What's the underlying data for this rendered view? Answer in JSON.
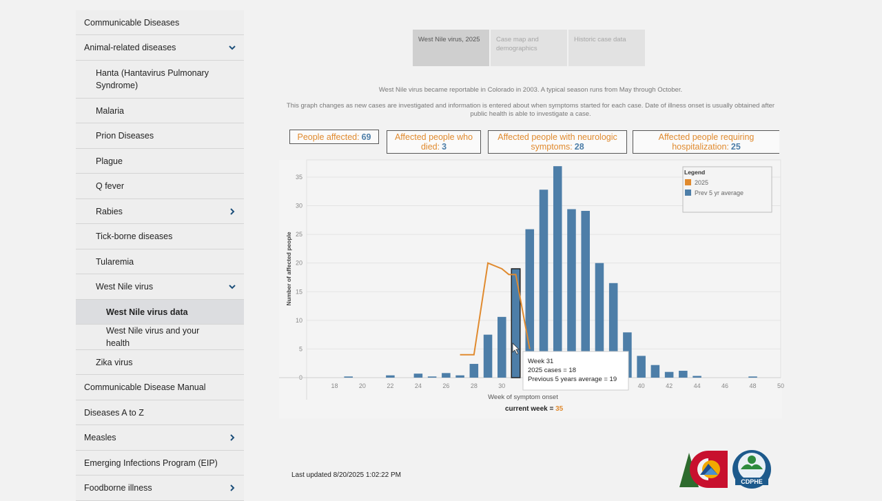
{
  "sidebar": {
    "items": [
      {
        "label": "Communicable Diseases",
        "level": 1,
        "chevron": "",
        "height": 36
      },
      {
        "label": "Animal-related diseases",
        "level": 1,
        "chevron": "down",
        "height": 37
      },
      {
        "label": "Hanta (Hantavirus Pulmonary Syndrome)",
        "level": 2,
        "chevron": "",
        "height": 55
      },
      {
        "label": "Malaria",
        "level": 2,
        "chevron": "",
        "height": 36
      },
      {
        "label": "Prion Diseases",
        "level": 2,
        "chevron": "",
        "height": 37
      },
      {
        "label": "Plague",
        "level": 2,
        "chevron": "",
        "height": 36
      },
      {
        "label": "Q fever",
        "level": 2,
        "chevron": "",
        "height": 37
      },
      {
        "label": "Rabies",
        "level": 2,
        "chevron": "right",
        "height": 36
      },
      {
        "label": "Tick-borne diseases",
        "level": 2,
        "chevron": "",
        "height": 37
      },
      {
        "label": "Tularemia",
        "level": 2,
        "chevron": "",
        "height": 36
      },
      {
        "label": "West Nile virus",
        "level": 2,
        "chevron": "down",
        "height": 37
      },
      {
        "label": "West Nile virus data",
        "level": 3,
        "chevron": "",
        "height": 36,
        "active": true
      },
      {
        "label": "West Nile virus and your health",
        "level": 3,
        "chevron": "",
        "height": 37
      },
      {
        "label": "Zika virus",
        "level": 2,
        "chevron": "",
        "height": 36
      },
      {
        "label": "Communicable Disease Manual",
        "level": 1,
        "chevron": "",
        "height": 37
      },
      {
        "label": "Diseases A to Z",
        "level": 1,
        "chevron": "",
        "height": 36
      },
      {
        "label": "Measles",
        "level": 1,
        "chevron": "right",
        "height": 37
      },
      {
        "label": "Emerging Infections Program (EIP)",
        "level": 1,
        "chevron": "",
        "height": 36
      },
      {
        "label": "Foodborne illness",
        "level": 1,
        "chevron": "right",
        "height": 37
      }
    ]
  },
  "tabs": [
    {
      "label": "West Nile virus, 2025"
    },
    {
      "label": "Case map and demographics"
    },
    {
      "label": "Historic case data"
    }
  ],
  "intro": {
    "line1": "West Nile virus became reportable in Colorado in 2003. A typical season runs from May through October.",
    "line2": "This graph changes as new cases are investigated and information is entered about when symptoms started for each case. Date of illness onset is usually obtained after public health is able to investigate a case."
  },
  "stats": {
    "affected_label": "People affected:",
    "affected_value": "69",
    "died_label": "Affected people who died:",
    "died_value": "3",
    "neuro_label": "Affected people with neurologic symptoms:",
    "neuro_value": "28",
    "hosp_label": "Affected people requiring hospitalization:",
    "hosp_value": "25"
  },
  "chart_data": {
    "type": "bar",
    "xlabel": "Week of symptom onset",
    "ylabel": "Number of affected people",
    "xlim": [
      16,
      50
    ],
    "ylim": [
      0,
      38
    ],
    "xticks": [
      18,
      20,
      22,
      24,
      26,
      28,
      30,
      32,
      34,
      36,
      38,
      40,
      42,
      44,
      46,
      48,
      50
    ],
    "yticks": [
      0,
      5,
      10,
      15,
      20,
      25,
      30,
      35
    ],
    "legend": {
      "title": "Legend",
      "position": "top-right"
    },
    "series": [
      {
        "name": "Prev 5 yr average",
        "type": "bar",
        "color": "#4d7ea8",
        "x": [
          19,
          22,
          24,
          25,
          26,
          27,
          28,
          29,
          30,
          31,
          32,
          33,
          34,
          35,
          36,
          37,
          38,
          39,
          40,
          41,
          42,
          43,
          44,
          48
        ],
        "values": [
          0.2,
          0.4,
          0.7,
          0.2,
          0.8,
          0.4,
          2.4,
          7.5,
          10.6,
          19,
          25.9,
          32.8,
          36.9,
          29.4,
          29.1,
          20,
          16.5,
          7.9,
          3.8,
          2.2,
          1,
          1.2,
          0.3,
          0.2
        ]
      },
      {
        "name": "2025",
        "type": "line",
        "color": "#e08a2e",
        "x": [
          27,
          28,
          29,
          30,
          30.5,
          31,
          32
        ],
        "values": [
          4,
          4,
          20,
          19,
          18,
          18,
          5
        ]
      }
    ],
    "highlight_x": 31,
    "tooltip": {
      "week": "Week 31",
      "cases": "2025 cases = 18",
      "avg": "Previous 5 years average = 19"
    }
  },
  "current_week": {
    "label": "current week =",
    "value": "35"
  },
  "last_updated": "Last updated 8/20/2025 1:02:22 PM",
  "logo": {
    "text": "CDPHE"
  }
}
